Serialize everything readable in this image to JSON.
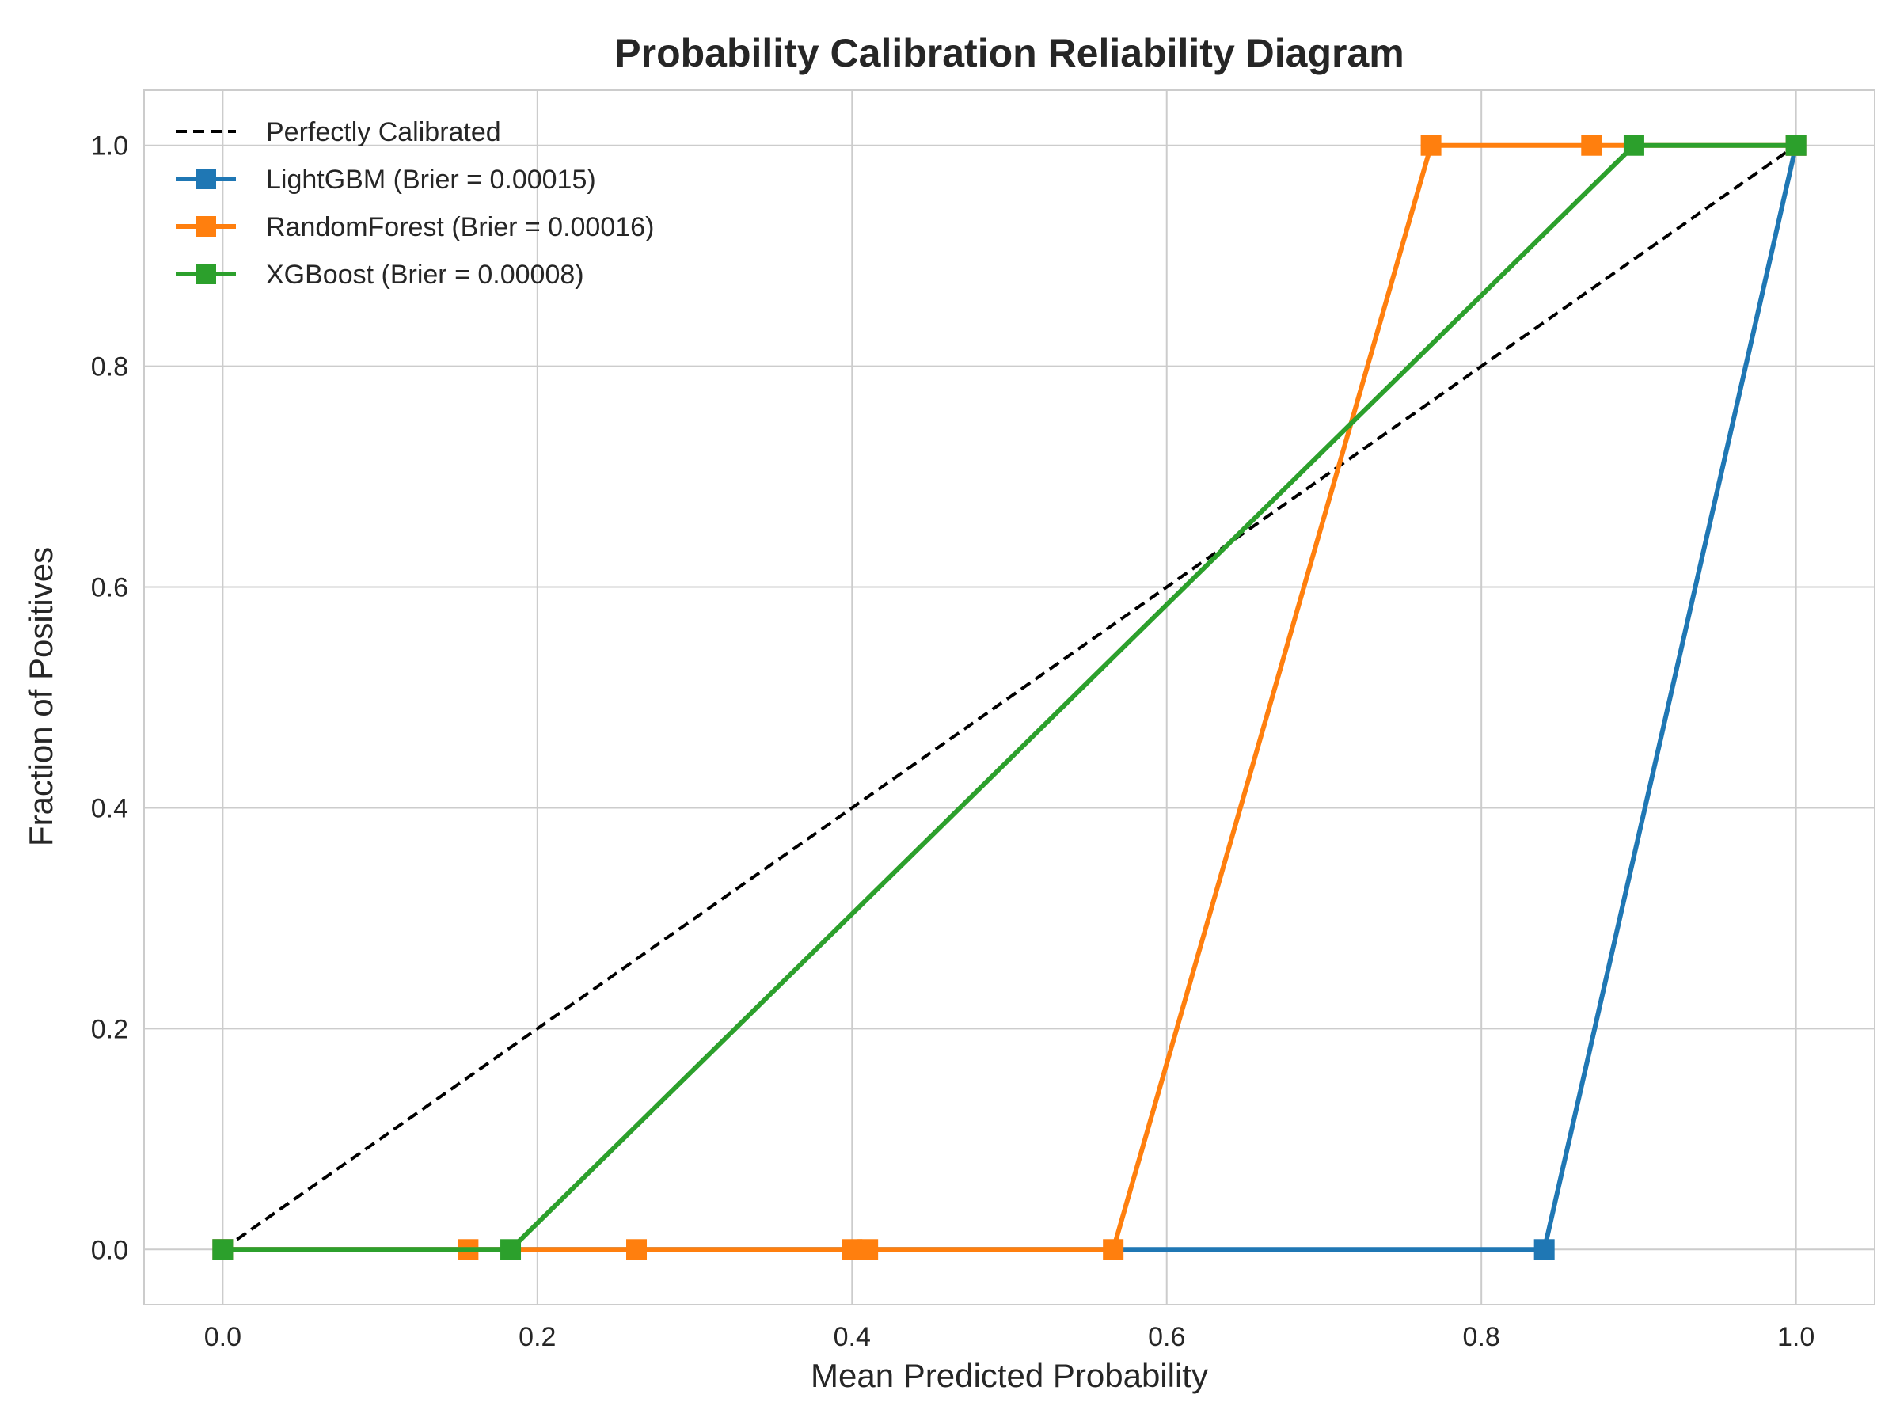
{
  "chart_data": {
    "type": "line",
    "title": "Probability Calibration Reliability Diagram",
    "xlabel": "Mean Predicted Probability",
    "ylabel": "Fraction of Positives",
    "xlim": [
      -0.05,
      1.05
    ],
    "ylim": [
      -0.05,
      1.05
    ],
    "xticks": [
      "0.0",
      "0.2",
      "0.4",
      "0.6",
      "0.8",
      "1.0"
    ],
    "yticks": [
      "0.0",
      "0.2",
      "0.4",
      "0.6",
      "0.8",
      "1.0"
    ],
    "grid": true,
    "legend_position": "top-left",
    "reference": {
      "name": "Perfectly Calibrated",
      "x": [
        0,
        1
      ],
      "y": [
        0,
        1
      ],
      "color": "#000000",
      "style": "dashed"
    },
    "series": [
      {
        "name": "LightGBM (Brier = 0.00015)",
        "color": "#1f77b4",
        "marker": "square",
        "x": [
          0.0,
          0.84,
          1.0
        ],
        "y": [
          0.0,
          0.0,
          1.0
        ]
      },
      {
        "name": "RandomForest (Brier = 0.00016)",
        "color": "#ff7f0e",
        "marker": "square",
        "x": [
          0.0,
          0.156,
          0.263,
          0.4,
          0.41,
          0.566,
          0.768,
          0.87,
          1.0
        ],
        "y": [
          0.0,
          0.0,
          0.0,
          0.0,
          0.0,
          0.0,
          1.0,
          1.0,
          1.0
        ]
      },
      {
        "name": "XGBoost (Brier = 0.00008)",
        "color": "#2ca02c",
        "marker": "square",
        "x": [
          0.0,
          0.183,
          0.897,
          1.0
        ],
        "y": [
          0.0,
          0.0,
          1.0,
          1.0
        ]
      }
    ]
  }
}
